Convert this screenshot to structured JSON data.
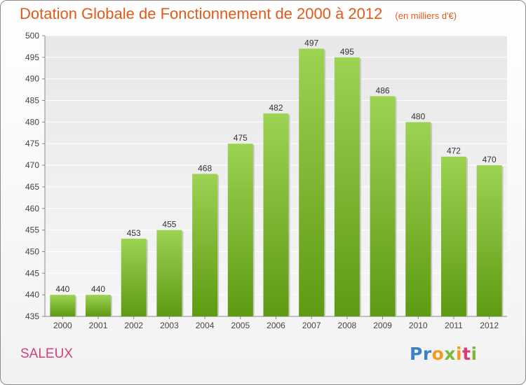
{
  "chart_data": {
    "type": "bar",
    "title": "Dotation Globale de Fonctionnement de 2000 à 2012",
    "subtitle": "(en milliers d'€)",
    "categories": [
      "2000",
      "2001",
      "2002",
      "2003",
      "2004",
      "2005",
      "2006",
      "2007",
      "2008",
      "2009",
      "2010",
      "2011",
      "2012"
    ],
    "values": [
      440,
      440,
      453,
      455,
      468,
      475,
      482,
      497,
      495,
      486,
      480,
      472,
      470
    ],
    "ylim": [
      435,
      500
    ],
    "yticks": [
      435,
      440,
      445,
      450,
      455,
      460,
      465,
      470,
      475,
      480,
      485,
      490,
      495,
      500
    ],
    "grid": true,
    "bar_color_top": "#9dd353",
    "bar_color_bottom": "#5e9a12"
  },
  "place_name": "SALEUX",
  "logo": {
    "text": "Proxiti",
    "letters": [
      {
        "ch": "P",
        "color": "#3a82c4"
      },
      {
        "ch": "r",
        "color": "#3a82c4"
      },
      {
        "ch": "o",
        "color": "#f29a1f"
      },
      {
        "ch": "x",
        "color": "#7bb93a"
      },
      {
        "ch": "i",
        "color": "#f29a1f"
      },
      {
        "ch": "t",
        "color": "#d63f7a"
      },
      {
        "ch": "i",
        "color": "#7bb93a"
      }
    ]
  }
}
